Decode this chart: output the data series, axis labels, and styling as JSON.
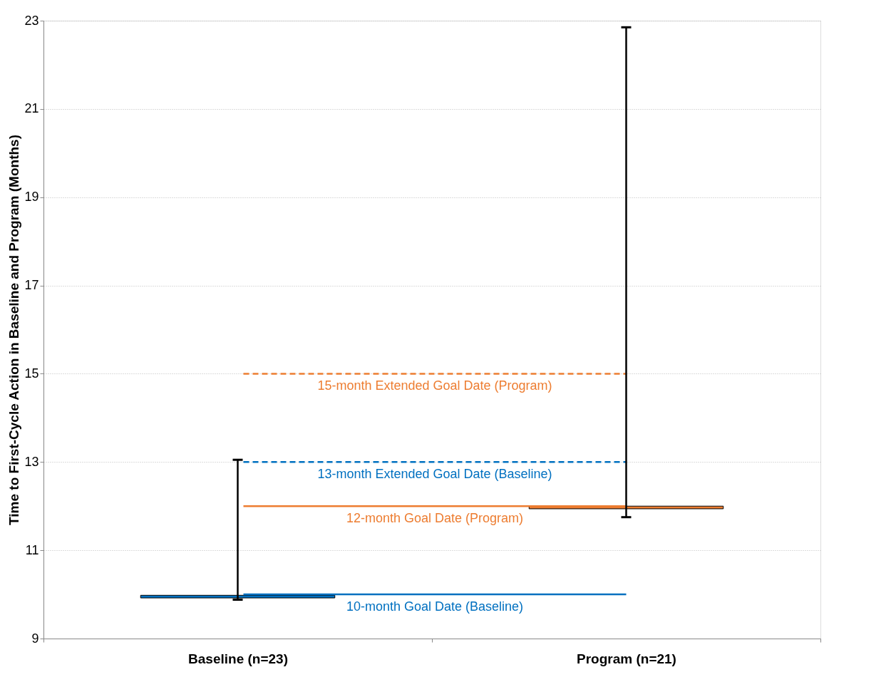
{
  "chart_data": {
    "type": "bar",
    "ylabel": "Time to First-Cycle Action in Baseline and Program (Months)",
    "categories": [
      "Baseline (n=23)",
      "Program (n=21)"
    ],
    "base": [
      9.92,
      11.94
    ],
    "values": [
      0.06,
      0.06
    ],
    "colors": [
      "#0070c0",
      "#ed7d31"
    ],
    "errors": [
      [
        9.88,
        13.05
      ],
      [
        11.75,
        22.85
      ]
    ],
    "ylim": [
      9,
      23
    ],
    "yticks": [
      9,
      11,
      13,
      15,
      17,
      19,
      21,
      23
    ],
    "grid": "y",
    "legend": false,
    "ref_lines": [
      {
        "axis": "y",
        "value": 15,
        "label": "15-month Extended Goal Date (Program)",
        "color": "#ed7d31",
        "line_style": "dashed"
      },
      {
        "axis": "y",
        "value": 13,
        "label": "13-month Extended Goal Date (Baseline)",
        "color": "#0070c0",
        "line_style": "dashed"
      },
      {
        "axis": "y",
        "value": 12,
        "label": "12-month Goal Date (Program)",
        "color": "#ed7d31",
        "line_style": "solid"
      },
      {
        "axis": "y",
        "value": 10,
        "label": "10-month Goal Date (Baseline)",
        "color": "#0070c0",
        "line_style": "solid"
      }
    ]
  }
}
